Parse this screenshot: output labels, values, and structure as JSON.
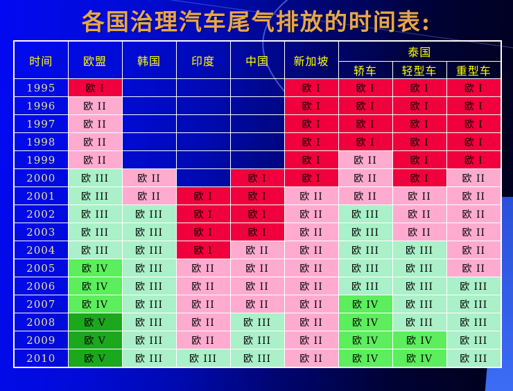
{
  "title": "各国治理汽车尾气排放的时间表:",
  "colors": {
    "euro1": "#f0003c",
    "euro2": "#ffabd0",
    "euro3": "#aaf0c8",
    "euro4": "#5cee5c",
    "euro5": "#1ca81c",
    "empty": "transparent",
    "title_gold": "#e7a64a",
    "header_text": "#ffff00",
    "year_text": "#e9e48f",
    "grid_line": "#ffffff",
    "background_bright_blue": "#0209f2",
    "background_dark_navy": "#000119",
    "accent_band_blue": "#3c6cf5"
  },
  "table": {
    "headers": [
      "时间",
      "欧盟",
      "韩国",
      "印度",
      "中国",
      "新加坡"
    ],
    "group_header": "泰国",
    "sub_headers": [
      "轿车",
      "轻型车",
      "重型车"
    ],
    "rows": [
      {
        "year": "1995",
        "cells": [
          [
            "欧 I",
            "euro1"
          ],
          [
            "",
            ""
          ],
          [
            "",
            ""
          ],
          [
            "",
            ""
          ],
          [
            "欧 I",
            "euro1"
          ],
          [
            "欧 I",
            "euro1"
          ],
          [
            "欧 I",
            "euro1"
          ],
          [
            "欧 I",
            "euro1"
          ]
        ]
      },
      {
        "year": "1996",
        "cells": [
          [
            "欧 II",
            "euro2"
          ],
          [
            "",
            ""
          ],
          [
            "",
            ""
          ],
          [
            "",
            ""
          ],
          [
            "欧 I",
            "euro1"
          ],
          [
            "欧 I",
            "euro1"
          ],
          [
            "欧 I",
            "euro1"
          ],
          [
            "欧 I",
            "euro1"
          ]
        ]
      },
      {
        "year": "1997",
        "cells": [
          [
            "欧 II",
            "euro2"
          ],
          [
            "",
            ""
          ],
          [
            "",
            ""
          ],
          [
            "",
            ""
          ],
          [
            "欧 I",
            "euro1"
          ],
          [
            "欧 I",
            "euro1"
          ],
          [
            "欧 I",
            "euro1"
          ],
          [
            "欧 I",
            "euro1"
          ]
        ]
      },
      {
        "year": "1998",
        "cells": [
          [
            "欧 II",
            "euro2"
          ],
          [
            "",
            ""
          ],
          [
            "",
            ""
          ],
          [
            "",
            ""
          ],
          [
            "欧 I",
            "euro1"
          ],
          [
            "欧 I",
            "euro1"
          ],
          [
            "欧 I",
            "euro1"
          ],
          [
            "欧 I",
            "euro1"
          ]
        ]
      },
      {
        "year": "1999",
        "cells": [
          [
            "欧 II",
            "euro2"
          ],
          [
            "",
            ""
          ],
          [
            "",
            ""
          ],
          [
            "",
            ""
          ],
          [
            "欧 I",
            "euro1"
          ],
          [
            "欧 II",
            "euro2"
          ],
          [
            "欧 I",
            "euro1"
          ],
          [
            "欧 I",
            "euro1"
          ]
        ]
      },
      {
        "year": "2000",
        "cells": [
          [
            "欧 III",
            "euro3"
          ],
          [
            "欧 II",
            "euro2"
          ],
          [
            "",
            ""
          ],
          [
            "欧 I",
            "euro1"
          ],
          [
            "欧 I",
            "euro1"
          ],
          [
            "欧 II",
            "euro2"
          ],
          [
            "欧 I",
            "euro1"
          ],
          [
            "欧 II",
            "euro2"
          ]
        ]
      },
      {
        "year": "2001",
        "cells": [
          [
            "欧 III",
            "euro3"
          ],
          [
            "欧 II",
            "euro2"
          ],
          [
            "欧 I",
            "euro1"
          ],
          [
            "欧 I",
            "euro1"
          ],
          [
            "欧 II",
            "euro2"
          ],
          [
            "欧 II",
            "euro2"
          ],
          [
            "欧 II",
            "euro2"
          ],
          [
            "欧 II",
            "euro2"
          ]
        ]
      },
      {
        "year": "2002",
        "cells": [
          [
            "欧 III",
            "euro3"
          ],
          [
            "欧 III",
            "euro3"
          ],
          [
            "欧 I",
            "euro1"
          ],
          [
            "欧 I",
            "euro1"
          ],
          [
            "欧 II",
            "euro2"
          ],
          [
            "欧 III",
            "euro3"
          ],
          [
            "欧 II",
            "euro2"
          ],
          [
            "欧 II",
            "euro2"
          ]
        ]
      },
      {
        "year": "2003",
        "cells": [
          [
            "欧 III",
            "euro3"
          ],
          [
            "欧 III",
            "euro3"
          ],
          [
            "欧 I",
            "euro1"
          ],
          [
            "欧 I",
            "euro1"
          ],
          [
            "欧 II",
            "euro2"
          ],
          [
            "欧 III",
            "euro3"
          ],
          [
            "欧 II",
            "euro2"
          ],
          [
            "欧 II",
            "euro2"
          ]
        ]
      },
      {
        "year": "2004",
        "cells": [
          [
            "欧 III",
            "euro3"
          ],
          [
            "欧 III",
            "euro3"
          ],
          [
            "欧 I",
            "euro1"
          ],
          [
            "欧 II",
            "euro2"
          ],
          [
            "欧 II",
            "euro2"
          ],
          [
            "欧 III",
            "euro3"
          ],
          [
            "欧 III",
            "euro3"
          ],
          [
            "欧 II",
            "euro2"
          ]
        ]
      },
      {
        "year": "2005",
        "cells": [
          [
            "欧 IV",
            "euro4"
          ],
          [
            "欧 III",
            "euro3"
          ],
          [
            "欧 II",
            "euro2"
          ],
          [
            "欧 II",
            "euro2"
          ],
          [
            "欧 II",
            "euro2"
          ],
          [
            "欧 III",
            "euro3"
          ],
          [
            "欧 III",
            "euro3"
          ],
          [
            "欧 II",
            "euro2"
          ]
        ]
      },
      {
        "year": "2006",
        "cells": [
          [
            "欧 IV",
            "euro4"
          ],
          [
            "欧 III",
            "euro3"
          ],
          [
            "欧 II",
            "euro2"
          ],
          [
            "欧 II",
            "euro2"
          ],
          [
            "欧 II",
            "euro2"
          ],
          [
            "欧 III",
            "euro3"
          ],
          [
            "欧 III",
            "euro3"
          ],
          [
            "欧 III",
            "euro3"
          ]
        ]
      },
      {
        "year": "2007",
        "cells": [
          [
            "欧 IV",
            "euro4"
          ],
          [
            "欧 III",
            "euro3"
          ],
          [
            "欧 II",
            "euro2"
          ],
          [
            "欧 II",
            "euro2"
          ],
          [
            "欧 II",
            "euro2"
          ],
          [
            "欧 IV",
            "euro4"
          ],
          [
            "欧 III",
            "euro3"
          ],
          [
            "欧 III",
            "euro3"
          ]
        ]
      },
      {
        "year": "2008",
        "cells": [
          [
            "欧 V",
            "euro5"
          ],
          [
            "欧 III",
            "euro3"
          ],
          [
            "欧 II",
            "euro2"
          ],
          [
            "欧 III",
            "euro3"
          ],
          [
            "欧 II",
            "euro2"
          ],
          [
            "欧 IV",
            "euro4"
          ],
          [
            "欧 III",
            "euro3"
          ],
          [
            "欧 III",
            "euro3"
          ]
        ]
      },
      {
        "year": "2009",
        "cells": [
          [
            "欧 V",
            "euro5"
          ],
          [
            "欧 III",
            "euro3"
          ],
          [
            "欧 II",
            "euro2"
          ],
          [
            "欧 III",
            "euro3"
          ],
          [
            "欧 II",
            "euro2"
          ],
          [
            "欧 IV",
            "euro4"
          ],
          [
            "欧 IV",
            "euro4"
          ],
          [
            "欧 III",
            "euro3"
          ]
        ]
      },
      {
        "year": "2010",
        "cells": [
          [
            "欧 V",
            "euro5"
          ],
          [
            "欧 III",
            "euro3"
          ],
          [
            "欧 III",
            "euro3"
          ],
          [
            "欧 III",
            "euro3"
          ],
          [
            "欧 II",
            "euro2"
          ],
          [
            "欧 IV",
            "euro4"
          ],
          [
            "欧 IV",
            "euro4"
          ],
          [
            "欧 III",
            "euro3"
          ]
        ]
      }
    ]
  }
}
